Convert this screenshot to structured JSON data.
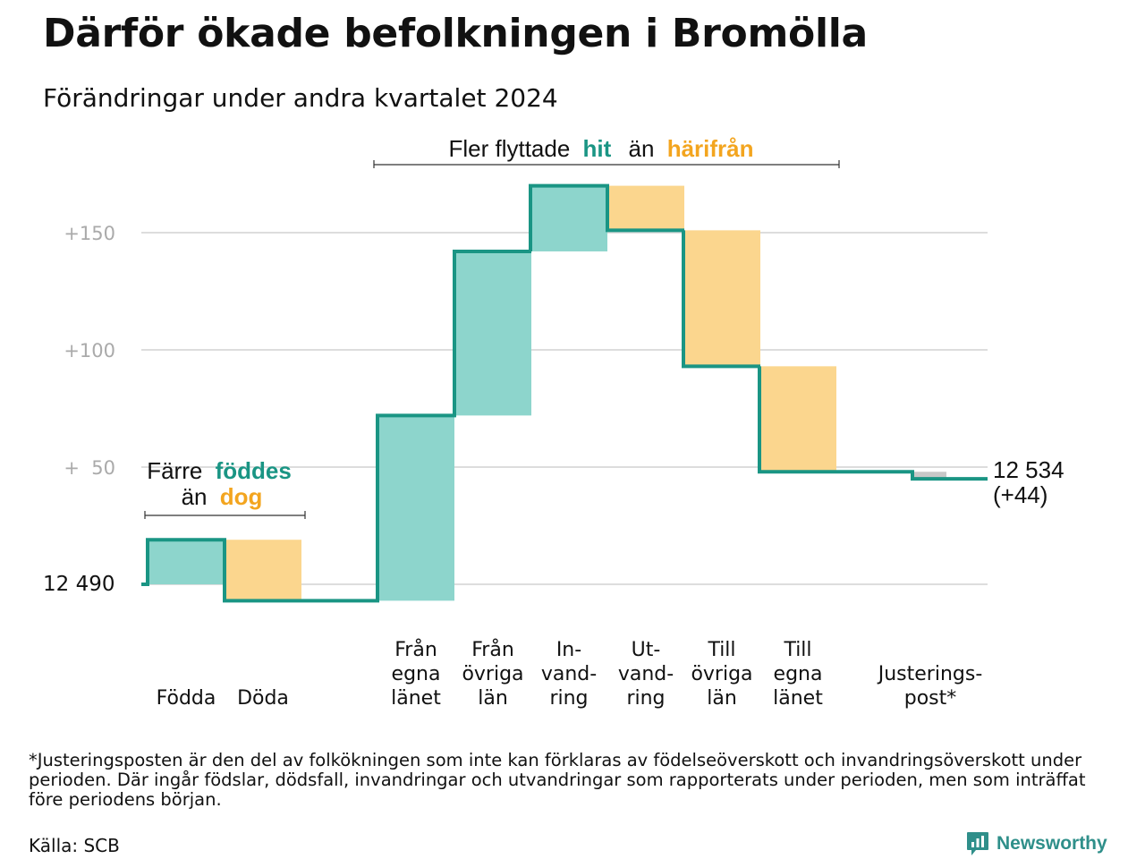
{
  "title": "Därför ökade befolkningen i Bromölla",
  "subtitle": "Förändringar under andra kvartalet 2024",
  "colors": {
    "increase_fill": "#8dd5cc",
    "decrease_fill": "#fbd68e",
    "step_line": "#1a9584",
    "adjustment_fill": "#c8c8c8",
    "grid": "#dddddd",
    "hit_text": "#1a9584",
    "harifran_text": "#f3a51f"
  },
  "annotations": {
    "migration": {
      "prefix": "Fler flyttade",
      "hit": "hit",
      "middle": "än",
      "harifran": "härifrån"
    },
    "natural": {
      "line1_prefix": "Färre",
      "line1_word": "föddes",
      "line2_prefix": "än",
      "line2_word": "dog"
    }
  },
  "end_label": {
    "line1": "12 534",
    "line2": "(+44)"
  },
  "footnote": "*Justeringsposten är den del av folkökningen som inte kan förklaras av födelseöverskott och invandringsöverskott under perioden. Där ingår födslar, dödsfall, invandringar och utvandringar som rapporterats under perioden, men som inträffat före periodens början.",
  "source": "Källa: SCB",
  "brand": "Newsworthy",
  "chart_data": {
    "type": "waterfall",
    "start_value": 12490,
    "start_label": "12  490",
    "end_value": 12534,
    "end_change": 44,
    "y_unit": "change from start",
    "ylim": [
      -7,
      170
    ],
    "yticks": [
      {
        "value": 50,
        "label": "+  50"
      },
      {
        "value": 100,
        "label": "+100"
      },
      {
        "value": 150,
        "label": "+150"
      }
    ],
    "grid": true,
    "steps": [
      {
        "label": [
          "Födda"
        ],
        "value": 19,
        "kind": "increase"
      },
      {
        "label": [
          "Döda"
        ],
        "value": -26,
        "kind": "decrease"
      },
      {
        "label": [
          "Från",
          "egna",
          "länet"
        ],
        "value": 79,
        "kind": "increase"
      },
      {
        "label": [
          "Från",
          "övriga",
          "län"
        ],
        "value": 70,
        "kind": "increase"
      },
      {
        "label": [
          "In-",
          "vand-",
          "ring"
        ],
        "value": 28,
        "kind": "increase"
      },
      {
        "label": [
          "Ut-",
          "vand-",
          "ring"
        ],
        "value": -19,
        "kind": "decrease"
      },
      {
        "label": [
          "Till",
          "övriga",
          "län"
        ],
        "value": -58,
        "kind": "decrease"
      },
      {
        "label": [
          "Till",
          "egna",
          "länet"
        ],
        "value": -45,
        "kind": "decrease"
      },
      {
        "label": [
          "Justerings-",
          "post*"
        ],
        "value": -3,
        "kind": "adjustment"
      }
    ]
  }
}
